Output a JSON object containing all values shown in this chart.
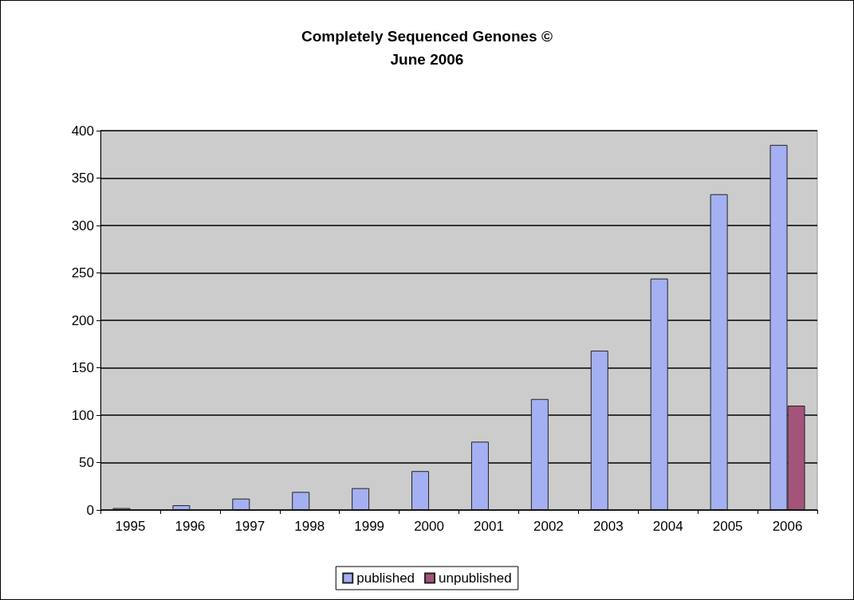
{
  "chart_data": {
    "type": "bar",
    "title": "Completely Sequenced Genones ©",
    "subtitle": "June 2006",
    "categories": [
      "1995",
      "1996",
      "1997",
      "1998",
      "1999",
      "2000",
      "2001",
      "2002",
      "2003",
      "2004",
      "2005",
      "2006"
    ],
    "series": [
      {
        "name": "published",
        "color": "#a4b0f2",
        "values": [
          2,
          5,
          12,
          19,
          23,
          41,
          72,
          117,
          168,
          244,
          333,
          385
        ]
      },
      {
        "name": "unpublished",
        "color": "#a4547a",
        "values": [
          null,
          null,
          null,
          null,
          null,
          null,
          null,
          null,
          null,
          null,
          null,
          110
        ]
      }
    ],
    "ylim": [
      0,
      400
    ],
    "yticks": [
      0,
      50,
      100,
      150,
      200,
      250,
      300,
      350,
      400
    ],
    "grid": "y",
    "legend": "bottom"
  }
}
